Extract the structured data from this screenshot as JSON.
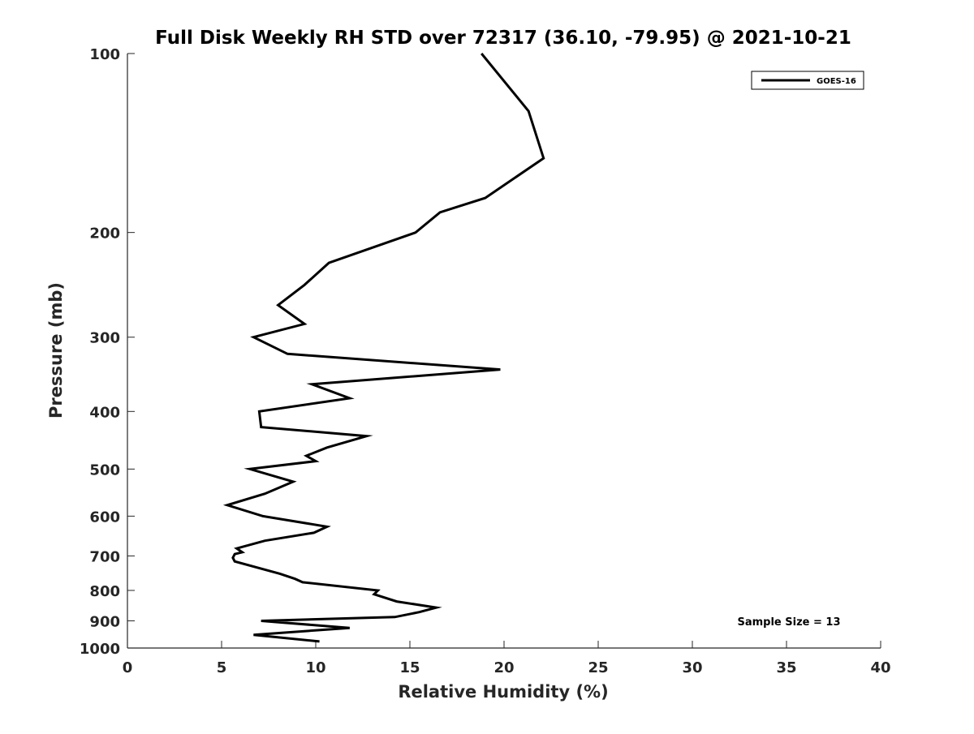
{
  "chart_data": {
    "type": "line",
    "title": "Full Disk Weekly RH STD over 72317 (36.10, -79.95) @ 2021-10-21",
    "xlabel": "Relative Humidity (%)",
    "ylabel": "Pressure (mb)",
    "xlim": [
      0,
      40
    ],
    "ylim": [
      1000,
      100
    ],
    "y_scale": "log",
    "y_direction": "reversed",
    "grid": false,
    "x_ticks": [
      0,
      5,
      10,
      15,
      20,
      25,
      30,
      35,
      40
    ],
    "x_tick_labels": [
      "0",
      "5",
      "10",
      "15",
      "20",
      "25",
      "30",
      "35",
      "40"
    ],
    "y_ticks": [
      100,
      200,
      300,
      400,
      500,
      600,
      700,
      800,
      900,
      1000
    ],
    "y_tick_labels": [
      "100",
      "200",
      "300",
      "400",
      "500",
      "600",
      "700",
      "800",
      "900",
      "1000"
    ],
    "legend": {
      "position": "top-right",
      "entries": [
        "GOES-16"
      ]
    },
    "annotation": "Sample Size = 13",
    "series": [
      {
        "name": "GOES-16",
        "color": "#000000",
        "points": [
          [
            18.8,
            100
          ],
          [
            21.3,
            125
          ],
          [
            22.1,
            150
          ],
          [
            19.0,
            175
          ],
          [
            16.6,
            185
          ],
          [
            15.3,
            200
          ],
          [
            10.7,
            225
          ],
          [
            9.4,
            245
          ],
          [
            8.0,
            265
          ],
          [
            9.4,
            285
          ],
          [
            6.7,
            300
          ],
          [
            8.5,
            320
          ],
          [
            19.8,
            340
          ],
          [
            9.8,
            360
          ],
          [
            11.8,
            380
          ],
          [
            7.0,
            400
          ],
          [
            7.1,
            425
          ],
          [
            12.7,
            440
          ],
          [
            10.6,
            460
          ],
          [
            9.5,
            475
          ],
          [
            10.0,
            485
          ],
          [
            6.5,
            500
          ],
          [
            8.8,
            525
          ],
          [
            7.3,
            550
          ],
          [
            5.3,
            575
          ],
          [
            7.2,
            600
          ],
          [
            10.6,
            625
          ],
          [
            9.9,
            640
          ],
          [
            7.3,
            660
          ],
          [
            5.8,
            680
          ],
          [
            6.1,
            690
          ],
          [
            5.7,
            695
          ],
          [
            5.6,
            705
          ],
          [
            5.7,
            715
          ],
          [
            8.1,
            750
          ],
          [
            8.9,
            765
          ],
          [
            9.3,
            775
          ],
          [
            13.3,
            800
          ],
          [
            13.1,
            812
          ],
          [
            14.3,
            835
          ],
          [
            16.4,
            855
          ],
          [
            15.5,
            870
          ],
          [
            14.2,
            887
          ],
          [
            7.1,
            900
          ],
          [
            11.8,
            925
          ],
          [
            6.7,
            950
          ],
          [
            10.2,
            975
          ]
        ]
      }
    ]
  }
}
